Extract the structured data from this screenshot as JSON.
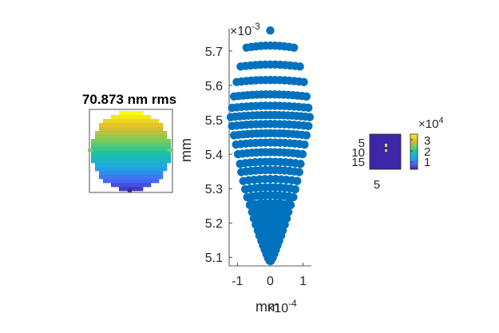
{
  "chart_data": [
    {
      "type": "heatmap",
      "title": "70.873 nm rms",
      "description_colormap": "parula"
    },
    {
      "type": "scatter",
      "xlabel": "mm",
      "ylabel": "mm",
      "x_exponent_label": "×10",
      "x_exponent": "-4",
      "y_exponent_label": "×10",
      "y_exponent": "-3",
      "x_ticks": [
        "-1",
        "0",
        "1"
      ],
      "x_tick_values": [
        -1,
        0,
        1
      ],
      "y_ticks": [
        "5.1",
        "5.2",
        "5.3",
        "5.4",
        "5.5",
        "5.6",
        "5.7"
      ],
      "y_tick_values": [
        5.1,
        5.2,
        5.3,
        5.4,
        5.5,
        5.6,
        5.7
      ],
      "xlim": [
        -1.25,
        1.25
      ],
      "ylim": [
        5.075,
        5.765
      ],
      "marker_color": "#0072BD",
      "apex_point": [
        0,
        5.76
      ],
      "rows": [
        {
          "y": 5.71,
          "halfwidth": 0.72,
          "n": 11
        },
        {
          "y": 5.655,
          "halfwidth": 0.9,
          "n": 13
        },
        {
          "y": 5.61,
          "halfwidth": 1.02,
          "n": 15
        },
        {
          "y": 5.568,
          "halfwidth": 1.1,
          "n": 17
        },
        {
          "y": 5.535,
          "halfwidth": 1.16,
          "n": 17
        },
        {
          "y": 5.508,
          "halfwidth": 1.2,
          "n": 19
        },
        {
          "y": 5.482,
          "halfwidth": 1.16,
          "n": 17
        },
        {
          "y": 5.455,
          "halfwidth": 1.1,
          "n": 17
        },
        {
          "y": 5.428,
          "halfwidth": 1.04,
          "n": 15
        },
        {
          "y": 5.4,
          "halfwidth": 0.98,
          "n": 15
        },
        {
          "y": 5.372,
          "halfwidth": 0.92,
          "n": 13
        },
        {
          "y": 5.348,
          "halfwidth": 0.88,
          "n": 13
        },
        {
          "y": 5.322,
          "halfwidth": 0.82,
          "n": 11
        },
        {
          "y": 5.298,
          "halfwidth": 0.76,
          "n": 11
        },
        {
          "y": 5.275,
          "halfwidth": 0.7,
          "n": 11
        },
        {
          "y": 5.252,
          "halfwidth": 0.62,
          "n": 9
        },
        {
          "y": 5.232,
          "halfwidth": 0.55,
          "n": 9
        },
        {
          "y": 5.213,
          "halfwidth": 0.5,
          "n": 9
        },
        {
          "y": 5.195,
          "halfwidth": 0.44,
          "n": 7
        },
        {
          "y": 5.178,
          "halfwidth": 0.38,
          "n": 7
        },
        {
          "y": 5.163,
          "halfwidth": 0.33,
          "n": 7
        },
        {
          "y": 5.148,
          "halfwidth": 0.27,
          "n": 5
        },
        {
          "y": 5.135,
          "halfwidth": 0.22,
          "n": 5
        },
        {
          "y": 5.122,
          "halfwidth": 0.17,
          "n": 5
        },
        {
          "y": 5.11,
          "halfwidth": 0.12,
          "n": 3
        },
        {
          "y": 5.098,
          "halfwidth": 0.07,
          "n": 3
        },
        {
          "y": 5.085,
          "halfwidth": 0.0,
          "n": 1
        }
      ]
    },
    {
      "type": "heatmap",
      "x_ticks": [
        "5"
      ],
      "y_ticks": [
        "5",
        "10",
        "15"
      ],
      "colorbar_ticks": [
        "1",
        "2",
        "3"
      ],
      "colorbar_exponent_label": "×10",
      "colorbar_exponent": "4"
    }
  ]
}
